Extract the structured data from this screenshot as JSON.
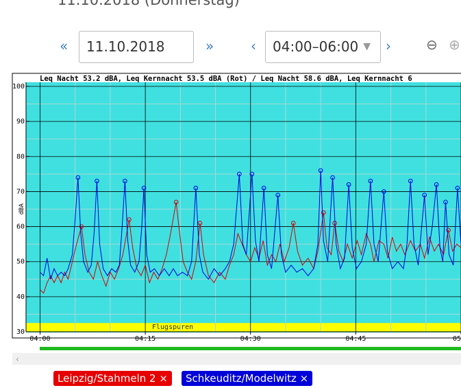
{
  "header": {
    "title": "11.10.2018 (Donnerstag)"
  },
  "controls": {
    "prev_day": "«",
    "date": "11.10.2018",
    "next_day": "»",
    "prev_range": "‹",
    "time_range": "04:00–06:00",
    "next_range": "›",
    "zoom_out": "⊖",
    "zoom_in": "⊕"
  },
  "chart_data": {
    "type": "line",
    "title": "Leq Nacht 53.2 dBA, Leq Kernnacht 53.5 dBA (Rot) / Leq Nacht 58.6 dBA, Leq Kernnacht 6",
    "y_label": "dBA",
    "xlim": [
      -2,
      60
    ],
    "xticks": [
      {
        "value": 0,
        "label": "04:00"
      },
      {
        "value": 15,
        "label": "04:15"
      },
      {
        "value": 30,
        "label": "04:30"
      },
      {
        "value": 45,
        "label": "04:45"
      },
      {
        "value": 60,
        "label": "05"
      }
    ],
    "xticks_minor": [
      5,
      10,
      20,
      25,
      35,
      40,
      50,
      55
    ],
    "ylim": [
      30,
      100
    ],
    "yticks": [
      30,
      40,
      50,
      60,
      70,
      80,
      90,
      100
    ],
    "yticks_minor": [
      35,
      45,
      55,
      65,
      75,
      85,
      95
    ],
    "grid": true,
    "background": "#40e0e0",
    "bands": [
      {
        "label": "Flugspuren",
        "from": 30,
        "to": 32.5,
        "color": "#ffff00"
      }
    ],
    "series": [
      {
        "name": "Leipzig/Stahmeln 2 ×",
        "color": "#d40000",
        "x": [
          0,
          0.5,
          1,
          1.5,
          2,
          2.5,
          3,
          3.5,
          4,
          4.6,
          5.2,
          5.9,
          6.4,
          7,
          7.6,
          8.2,
          8.8,
          9.4,
          10,
          10.6,
          11.2,
          11.8,
          12.7,
          13.2,
          13.8,
          14.4,
          15,
          15.6,
          16.2,
          16.8,
          17.4,
          18,
          18.6,
          19.4,
          19.9,
          20.4,
          21,
          21.6,
          22.2,
          22.8,
          23.3,
          24,
          24.8,
          25.6,
          26.4,
          27,
          27.6,
          28.2,
          28.8,
          29.4,
          30,
          30.6,
          31.2,
          31.8,
          32.4,
          33,
          33.6,
          34.2,
          34.8,
          35.5,
          36.1,
          36.7,
          37.4,
          38.2,
          39,
          39.6,
          40.4,
          40.9,
          41.5,
          42,
          42.6,
          43.2,
          43.8,
          44.5,
          45.2,
          45.8,
          46.5,
          47.1,
          47.6,
          48.3,
          49,
          49.6,
          50.2,
          50.8,
          51.4,
          52,
          52.8,
          53.5,
          54.2,
          54.8,
          55.5,
          56.2,
          56.8,
          57.5,
          58.2,
          58.8,
          59.4,
          60
        ],
        "values": [
          42,
          41,
          44,
          46,
          44,
          46,
          44,
          47,
          45,
          50,
          55,
          60,
          52,
          47,
          45,
          50,
          46,
          43,
          47,
          45,
          48,
          52,
          62,
          54,
          48,
          46,
          49,
          44,
          47,
          45,
          48,
          52,
          58,
          67,
          58,
          50,
          47,
          45,
          50,
          61,
          52,
          46,
          44,
          47,
          45,
          49,
          52,
          58,
          55,
          52,
          50,
          54,
          51,
          56,
          49,
          52,
          50,
          55,
          50,
          54,
          61,
          53,
          49,
          51,
          48,
          53,
          64,
          54,
          52,
          61,
          53,
          50,
          55,
          51,
          56,
          52,
          58,
          55,
          50,
          56,
          55,
          51,
          57,
          53,
          55,
          52,
          56,
          53,
          55,
          51,
          57,
          53,
          55,
          52,
          59,
          53,
          55,
          54
        ]
      },
      {
        "name": "Schkeuditz/Modelwitz ×",
        "color": "#0000e0",
        "x": [
          0,
          0.5,
          1,
          1.5,
          2,
          2.5,
          3,
          3.5,
          4,
          4.6,
          5,
          5.4,
          5.8,
          6.2,
          6.8,
          7.3,
          7.7,
          8.1,
          8.5,
          9,
          9.6,
          10.2,
          10.8,
          11.3,
          11.7,
          12.1,
          12.5,
          12.9,
          13.5,
          14.1,
          14.5,
          14.8,
          15.2,
          15.7,
          16.3,
          17,
          17.7,
          18.4,
          19,
          19.6,
          20.3,
          21,
          21.6,
          22.2,
          22.7,
          23.2,
          24,
          24.8,
          25.6,
          26.4,
          27,
          27.6,
          28.4,
          28.9,
          29.4,
          30.2,
          30.7,
          31.2,
          31.9,
          32.4,
          33,
          33.9,
          34.4,
          35,
          35.8,
          36.6,
          37.4,
          38.2,
          39,
          39.6,
          40,
          40.4,
          41,
          41.7,
          42.2,
          42.8,
          43.4,
          44,
          44.5,
          45.1,
          45.8,
          46.5,
          47.1,
          47.6,
          48.2,
          49,
          49.5,
          50.2,
          51,
          51.8,
          52.3,
          52.8,
          53.3,
          53.9,
          54.8,
          55.3,
          55.9,
          56.5,
          57,
          57.4,
          57.8,
          58.3,
          58.9,
          59.5,
          60
        ],
        "values": [
          47,
          46,
          51,
          45,
          48,
          46,
          47,
          46,
          48,
          52,
          62,
          74,
          58,
          50,
          47,
          49,
          58,
          73,
          55,
          48,
          46,
          48,
          47,
          49,
          60,
          73,
          56,
          49,
          47,
          50,
          60,
          71,
          52,
          47,
          48,
          46,
          48,
          46,
          48,
          46,
          47,
          46,
          50,
          71,
          52,
          47,
          45,
          48,
          46,
          48,
          50,
          55,
          75,
          55,
          52,
          75,
          56,
          50,
          71,
          52,
          48,
          69,
          52,
          47,
          49,
          47,
          48,
          46,
          48,
          55,
          76,
          56,
          50,
          74,
          55,
          48,
          51,
          72,
          54,
          48,
          50,
          55,
          73,
          55,
          50,
          70,
          53,
          48,
          50,
          48,
          55,
          73,
          55,
          49,
          69,
          52,
          60,
          72,
          54,
          50,
          67,
          52,
          49,
          71,
          55
        ]
      }
    ]
  }
}
